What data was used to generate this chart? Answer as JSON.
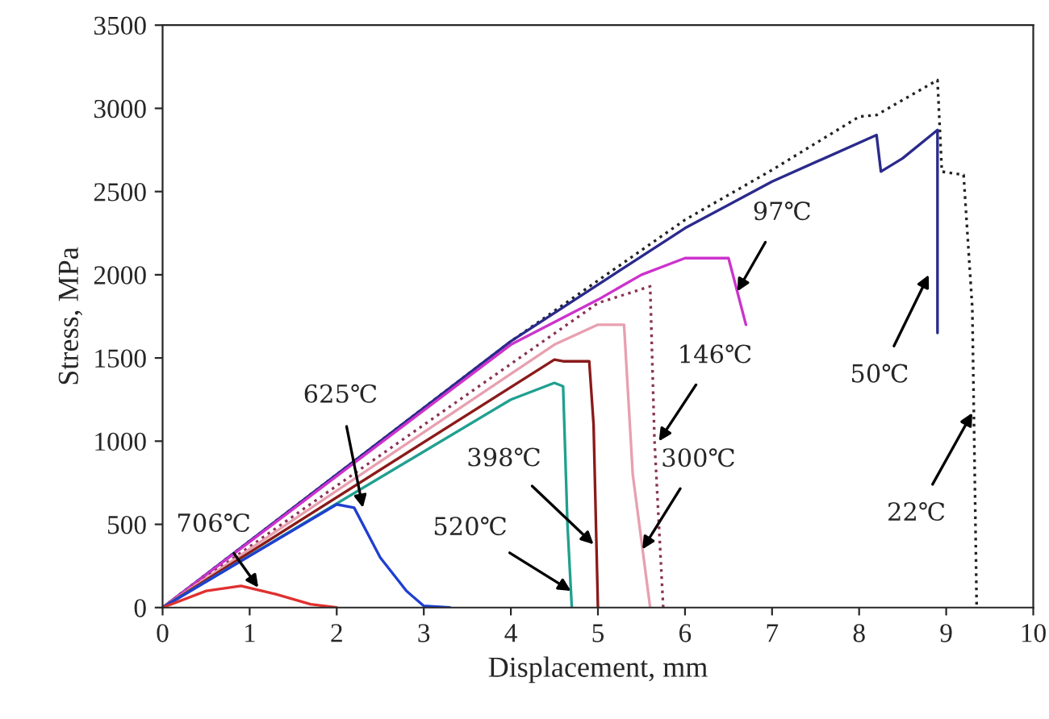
{
  "chart_data": {
    "type": "line",
    "xlabel": "Displacement, mm",
    "ylabel": "Stress, MPa",
    "xlim": [
      0,
      10
    ],
    "xticks": [
      0,
      1,
      2,
      3,
      4,
      5,
      6,
      7,
      8,
      9,
      10
    ],
    "ylim": [
      0,
      3500
    ],
    "yticks": [
      0,
      500,
      1000,
      1500,
      2000,
      2500,
      3000,
      3500
    ],
    "grid": false,
    "legend": false,
    "series": [
      {
        "color": "#222222",
        "line_style": "dotted",
        "x": [
          0,
          2,
          4,
          6,
          7,
          8,
          8.2,
          8.9,
          8.95,
          9.2,
          9.3,
          9.35
        ],
        "values": [
          0,
          800,
          1600,
          2330,
          2630,
          2950,
          2960,
          3170,
          2620,
          2600,
          1800,
          0
        ]
      },
      {
        "color": "#2a2a8c",
        "line_style": "solid",
        "x": [
          0,
          4,
          6,
          7,
          8.2,
          8.25,
          8.5,
          8.9,
          8.9
        ],
        "values": [
          0,
          1600,
          2280,
          2560,
          2840,
          2620,
          2700,
          2870,
          1650
        ]
      },
      {
        "color": "#cc33cc",
        "line_style": "solid",
        "x": [
          0,
          4,
          5,
          5.5,
          6,
          6.5,
          6.6,
          6.7
        ],
        "values": [
          0,
          1580,
          1850,
          2000,
          2100,
          2100,
          1900,
          1700
        ]
      },
      {
        "color": "#883355",
        "line_style": "dotted",
        "x": [
          0,
          5,
          5.6,
          5.65,
          5.75
        ],
        "values": [
          0,
          1830,
          1930,
          1000,
          0
        ]
      },
      {
        "color": "#e8a0b0",
        "line_style": "solid",
        "x": [
          0,
          4.5,
          5,
          5.3,
          5.4,
          5.6
        ],
        "values": [
          0,
          1580,
          1700,
          1700,
          800,
          0
        ]
      },
      {
        "color": "#8b1a1a",
        "line_style": "solid",
        "x": [
          0,
          4.5,
          4.6,
          4.9,
          4.95,
          5.0
        ],
        "values": [
          0,
          1490,
          1480,
          1480,
          1100,
          0
        ]
      },
      {
        "color": "#20a090",
        "line_style": "solid",
        "x": [
          0,
          4,
          4.5,
          4.6,
          4.65,
          4.7
        ],
        "values": [
          0,
          1250,
          1350,
          1330,
          500,
          0
        ]
      },
      {
        "color": "#1f3fd0",
        "line_style": "solid",
        "x": [
          0,
          2,
          2.2,
          2.5,
          2.8,
          3.0,
          3.3
        ],
        "values": [
          0,
          620,
          600,
          300,
          100,
          10,
          0
        ]
      },
      {
        "color": "#e03030",
        "line_style": "solid",
        "x": [
          0,
          0.5,
          0.9,
          1.3,
          1.7,
          2.0
        ],
        "values": [
          0,
          100,
          130,
          80,
          20,
          0
        ]
      }
    ],
    "annotations": [
      {
        "text": "706℃",
        "x": 1.1,
        "y": 120
      },
      {
        "text": "625℃",
        "x": 2.3,
        "y": 600
      },
      {
        "text": "520℃",
        "x": 4.69,
        "y": 100
      },
      {
        "text": "398℃",
        "x": 4.95,
        "y": 380
      },
      {
        "text": "300℃",
        "x": 5.51,
        "y": 350
      },
      {
        "text": "146℃",
        "x": 5.7,
        "y": 1000
      },
      {
        "text": "97℃",
        "x": 6.6,
        "y": 1900
      },
      {
        "text": "50℃",
        "x": 8.8,
        "y": 2000
      },
      {
        "text": "22℃",
        "x": 9.3,
        "y": 1170
      }
    ]
  }
}
